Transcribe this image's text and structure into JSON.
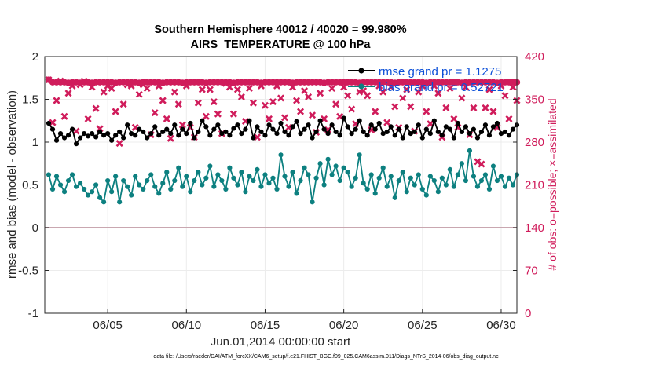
{
  "chart_data": {
    "type": "line",
    "title": "Southern Hemisphere 40012 / 40020 = 99.980%",
    "subtitle": "AIRS_TEMPERATURE @ 100 hPa",
    "xlabel": "Jun.01,2014 00:00:00 start",
    "ylabel": "rmse and bias (model - observation)",
    "ylabel_right": "# of obs: o=possible; ×=assimilated",
    "x_range_days": [
      1.0,
      31.0
    ],
    "ylim": [
      -1,
      2
    ],
    "ylim_right": [
      0,
      420
    ],
    "x_ticks": [
      {
        "day": 5,
        "label": "06/05"
      },
      {
        "day": 10,
        "label": "06/10"
      },
      {
        "day": 15,
        "label": "06/15"
      },
      {
        "day": 20,
        "label": "06/20"
      },
      {
        "day": 25,
        "label": "06/25"
      },
      {
        "day": 30,
        "label": "06/30"
      }
    ],
    "y_ticks": [
      "2",
      "1.5",
      "1",
      "0.5",
      "0",
      "-0.5",
      "-1"
    ],
    "y_ticks_right": [
      "420",
      "350",
      "280",
      "210",
      "140",
      "70",
      "0"
    ],
    "grid": true,
    "legend_position": "top-right",
    "colors": {
      "rmse": "#000000",
      "bias": "#0d8080",
      "obs": "#d01c5b",
      "zero_line": "#c9a7b0"
    },
    "series": [
      {
        "name": "rmse grand pr = 1.1275",
        "axis": "left",
        "color": "#000000",
        "step_days": 0.25,
        "values": [
          1.22,
          1.15,
          1.02,
          1.1,
          1.05,
          1.08,
          1.15,
          0.98,
          1.05,
          1.1,
          1.07,
          1.1,
          1.06,
          1.12,
          1.08,
          1.1,
          1.02,
          1.08,
          1.12,
          1.05,
          1.2,
          1.1,
          1.08,
          1.15,
          1.12,
          1.05,
          1.1,
          1.18,
          1.08,
          1.12,
          1.15,
          1.1,
          1.2,
          1.08,
          1.15,
          1.1,
          1.22,
          1.05,
          1.12,
          1.25,
          1.18,
          1.08,
          1.15,
          1.2,
          1.1,
          1.12,
          1.08,
          1.16,
          1.2,
          1.1,
          1.15,
          1.25,
          1.05,
          1.18,
          1.12,
          1.08,
          1.2,
          1.15,
          1.1,
          1.22,
          1.12,
          1.08,
          1.18,
          1.24,
          1.1,
          1.15,
          1.2,
          1.05,
          1.12,
          1.25,
          1.15,
          1.1,
          1.2,
          1.12,
          1.08,
          1.28,
          1.18,
          1.1,
          1.15,
          1.25,
          1.12,
          1.08,
          1.2,
          1.15,
          1.22,
          1.1,
          1.12,
          1.18,
          1.08,
          1.15,
          1.05,
          1.18,
          1.1,
          1.12,
          1.2,
          1.05,
          1.15,
          1.1,
          1.25,
          1.12,
          1.08,
          1.18,
          1.15,
          1.05,
          1.22,
          1.12,
          1.18,
          1.1,
          1.15,
          1.05,
          1.12,
          1.2,
          1.08,
          1.18,
          1.22,
          1.1,
          1.12,
          1.08,
          1.15,
          1.2
        ]
      },
      {
        "name": "bias grand pr = 0.52721",
        "axis": "left",
        "color": "#0d8080",
        "step_days": 0.25,
        "values": [
          0.62,
          0.45,
          0.6,
          0.5,
          0.42,
          0.55,
          0.62,
          0.48,
          0.52,
          0.45,
          0.38,
          0.42,
          0.5,
          0.35,
          0.3,
          0.55,
          0.42,
          0.6,
          0.3,
          0.55,
          0.48,
          0.38,
          0.6,
          0.5,
          0.45,
          0.55,
          0.62,
          0.48,
          0.4,
          0.52,
          0.65,
          0.45,
          0.55,
          0.7,
          0.48,
          0.6,
          0.42,
          0.55,
          0.65,
          0.5,
          0.58,
          0.72,
          0.48,
          0.62,
          0.55,
          0.45,
          0.7,
          0.58,
          0.5,
          0.65,
          0.42,
          0.6,
          0.55,
          0.68,
          0.48,
          0.62,
          0.52,
          0.58,
          0.45,
          0.85,
          0.6,
          0.48,
          0.65,
          0.4,
          0.55,
          0.7,
          0.62,
          0.3,
          0.58,
          0.75,
          0.5,
          0.8,
          0.62,
          0.72,
          0.55,
          0.7,
          0.65,
          0.48,
          0.58,
          0.85,
          0.52,
          0.45,
          0.62,
          0.4,
          0.58,
          0.7,
          0.48,
          0.6,
          0.35,
          0.55,
          0.65,
          0.42,
          0.58,
          0.5,
          0.62,
          0.45,
          0.38,
          0.6,
          0.55,
          0.42,
          0.58,
          0.5,
          0.68,
          0.48,
          0.62,
          0.75,
          0.55,
          0.9,
          0.6,
          0.48,
          0.55,
          0.62,
          0.45,
          0.72,
          0.55,
          0.6,
          0.48,
          0.58,
          0.5,
          0.62
        ]
      },
      {
        "name": "obs possible",
        "axis": "right",
        "color": "#d01c5b",
        "marker": "o",
        "step_days": 0.25,
        "values": [
          382,
          378,
          378,
          378,
          378,
          377,
          378,
          378,
          377,
          378,
          378,
          377,
          378,
          378,
          378,
          378,
          378,
          377,
          378,
          378,
          378,
          378,
          378,
          377,
          378,
          378,
          378,
          378,
          378,
          377,
          378,
          378,
          378,
          378,
          377,
          378,
          378,
          378,
          378,
          378,
          377,
          378,
          378,
          378,
          378,
          378,
          378,
          377,
          378,
          378,
          378,
          378,
          378,
          378,
          377,
          378,
          378,
          378,
          378,
          378,
          378,
          378,
          377,
          378,
          378,
          378,
          378,
          378,
          378,
          378,
          377,
          378,
          378,
          378,
          378,
          378,
          378,
          378,
          378,
          377,
          378,
          378,
          378,
          378,
          378,
          378,
          378,
          378,
          377,
          378,
          378,
          378,
          378,
          378,
          378,
          378,
          377,
          378,
          378,
          378,
          378,
          378,
          378,
          378,
          378,
          377,
          378,
          378,
          378,
          378,
          378,
          378,
          378,
          378,
          377,
          378,
          378,
          378,
          378,
          378
        ]
      },
      {
        "name": "obs assimilated",
        "axis": "right",
        "color": "#d01c5b",
        "marker": "x",
        "step_days": 0.25,
        "values": [
          382,
          312,
          348,
          380,
          322,
          360,
          372,
          298,
          374,
          380,
          318,
          370,
          335,
          302,
          362,
          372,
          368,
          330,
          278,
          342,
          374,
          372,
          304,
          358,
          374,
          368,
          292,
          328,
          372,
          348,
          318,
          286,
          362,
          342,
          308,
          372,
          304,
          288,
          344,
          366,
          322,
          366,
          346,
          326,
          294,
          376,
          370,
          326,
          366,
          354,
          314,
          368,
          344,
          288,
          372,
          340,
          318,
          346,
          372,
          352,
          320,
          304,
          370,
          348,
          330,
          364,
          354,
          324,
          296,
          360,
          318,
          300,
          368,
          342,
          322,
          370,
          356,
          334,
          310,
          362,
          364,
          356,
          300,
          330,
          372,
          362,
          312,
          370,
          338,
          304,
          352,
          366,
          338,
          298,
          362,
          372,
          330,
          310,
          372,
          360,
          288,
          336,
          368,
          318,
          304,
          352,
          370,
          292,
          336,
          248,
          244,
          336,
          366,
          330,
          304,
          372,
          356,
          318,
          370,
          348
        ]
      }
    ]
  },
  "footer": {
    "data_file": "data file: /Users/raeder/DAI/ATM_forcXX/CAM6_setup/f.e21.FHIST_BGC.f09_025.CAM6assim.011/Diags_NTrS_2014-06/obs_diag_output.nc"
  }
}
